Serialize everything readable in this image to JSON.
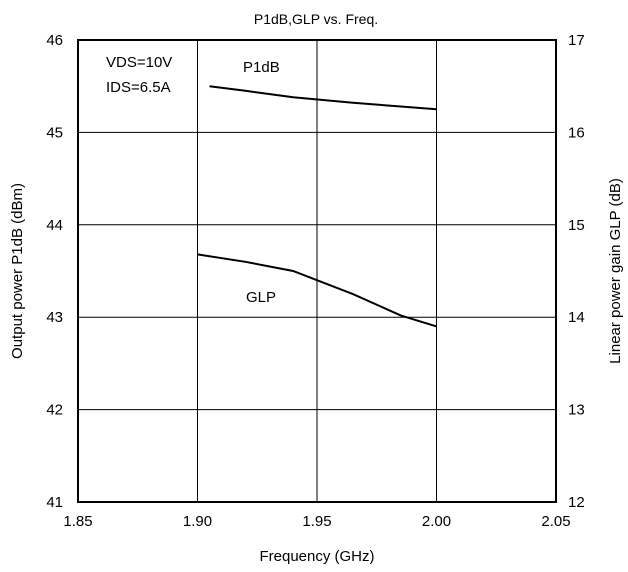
{
  "chart_data": {
    "type": "line",
    "title": "P1dB,GLP vs. Freq.",
    "xlabel": "Frequency (GHz)",
    "ylabel_left": "Output power P1dB (dBm)",
    "ylabel_right": "Linear power gain GLP (dB)",
    "xlim": [
      1.85,
      2.05
    ],
    "ylim_left": [
      41,
      46
    ],
    "ylim_right": [
      12,
      17
    ],
    "grid": true,
    "x_ticks": [
      "1.85",
      "1.90",
      "1.95",
      "2.00",
      "2.05"
    ],
    "y_left_ticks": [
      "41",
      "42",
      "43",
      "44",
      "45",
      "46"
    ],
    "y_right_ticks": [
      "12",
      "13",
      "14",
      "15",
      "16",
      "17"
    ],
    "conditions": [
      "VDS=10V",
      "IDS=6.5A"
    ],
    "series": [
      {
        "name": "P1dB",
        "axis": "left",
        "x": [
          1.905,
          1.92,
          1.94,
          1.965,
          1.985,
          2.0
        ],
        "y": [
          45.5,
          45.45,
          45.38,
          45.32,
          45.28,
          45.25
        ]
      },
      {
        "name": "GLP",
        "axis": "right",
        "x": [
          1.9,
          1.92,
          1.94,
          1.965,
          1.985,
          2.0
        ],
        "y": [
          14.68,
          14.6,
          14.5,
          14.25,
          14.02,
          13.9
        ]
      }
    ]
  }
}
